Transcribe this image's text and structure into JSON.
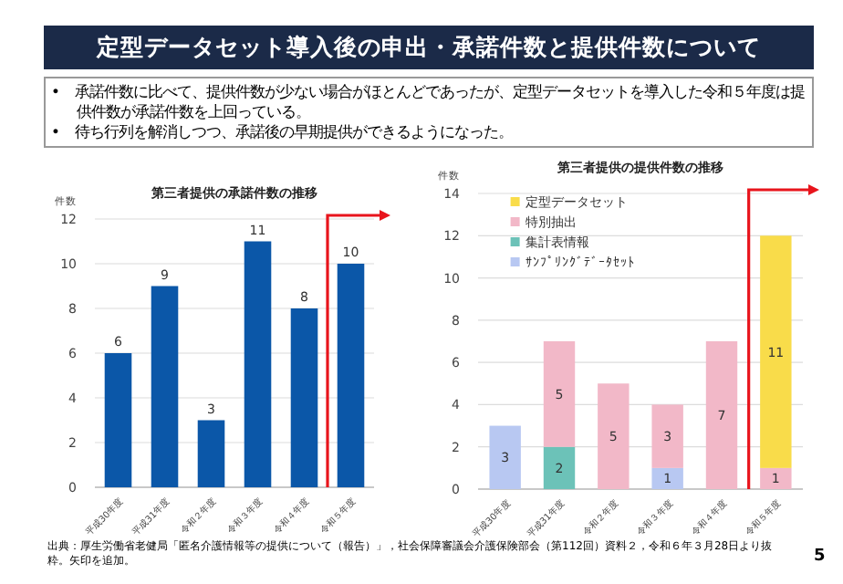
{
  "chart_data": [
    {
      "type": "other",
      "title": "定型データセット導入後の申出・承諾件数と提供件数について",
      "annotations": [
        "•　承諾件数に比べて、提供件数が少ない場合がほとんどであったが、定型データセットを導入した令和５年度は提供件数が承諾件数を上回っている。",
        "•　待ち行列を解消しつつ、承諾後の早期提供ができるようになった。",
        "出典：厚生労働省老健局「匿名介護情報等の提供について（報告）」，社会保障審議会介護保険部会（第112回）資料２，令和６年３月28日より抜粋。矢印を追加。",
        "5"
      ]
    },
    {
      "type": "bar",
      "title": "第三者提供の承諾件数の推移",
      "ylabel": "件数",
      "categories": [
        "平成30年度",
        "平成31年度",
        "令和２年度",
        "令和３年度",
        "令和４年度",
        "令和５年度"
      ],
      "values": [
        6,
        9,
        3,
        11,
        8,
        10
      ],
      "color": "#0b57a8",
      "ylim": [
        0,
        12
      ],
      "yticks": [
        0,
        2,
        4,
        6,
        8,
        10,
        12
      ],
      "grid": "y",
      "data_labels": true
    },
    {
      "type": "bar",
      "title": "第三者提供の提供件数の推移",
      "ylabel": "件数",
      "categories": [
        "平成30年度",
        "平成31年度",
        "令和２年度",
        "令和３年度",
        "令和４年度",
        "令和５年度"
      ],
      "stacked": true,
      "series": [
        {
          "name": "ｻﾝﾌﾟﾘﾝｸﾞﾃﾞｰﾀｾｯﾄ",
          "color": "#b8c8f2",
          "values": [
            3,
            null,
            null,
            1,
            null,
            null
          ]
        },
        {
          "name": "集計表情報",
          "color": "#6cc2b8",
          "values": [
            null,
            2,
            null,
            null,
            null,
            null
          ]
        },
        {
          "name": "特別抽出",
          "color": "#f2b8c8",
          "values": [
            null,
            5,
            5,
            3,
            7,
            1
          ]
        },
        {
          "name": "定型データセット",
          "color": "#f9dc4a",
          "values": [
            null,
            null,
            null,
            null,
            null,
            11
          ]
        }
      ],
      "ylim": [
        0,
        14
      ],
      "yticks": [
        0,
        2,
        4,
        6,
        8,
        10,
        12,
        14
      ],
      "grid": "y",
      "data_labels": true,
      "legend": "top left"
    }
  ]
}
